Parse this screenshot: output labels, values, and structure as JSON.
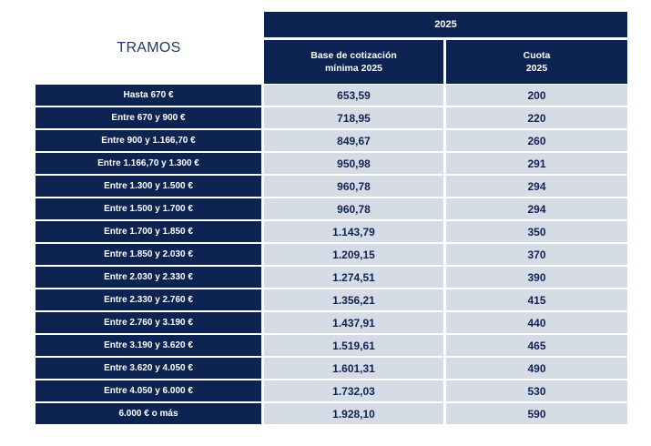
{
  "table": {
    "title": "TRAMOS",
    "year_header": "2025",
    "col_base_header": "Base de cotización\nmínima 2025",
    "col_cuota_header": "Cuota\n2025",
    "rows": [
      {
        "tramo": "Hasta 670 €",
        "base": "653,59",
        "cuota": "200"
      },
      {
        "tramo": "Entre 670 y 900 €",
        "base": "718,95",
        "cuota": "220"
      },
      {
        "tramo": "Entre 900 y 1.166,70 €",
        "base": "849,67",
        "cuota": "260"
      },
      {
        "tramo": "Entre 1.166,70 y 1.300 €",
        "base": "950,98",
        "cuota": "291"
      },
      {
        "tramo": "Entre 1.300 y 1.500 €",
        "base": "960,78",
        "cuota": "294"
      },
      {
        "tramo": "Entre 1.500 y 1.700 €",
        "base": "960,78",
        "cuota": "294"
      },
      {
        "tramo": "Entre 1.700 y 1.850 €",
        "base": "1.143,79",
        "cuota": "350"
      },
      {
        "tramo": "Entre 1.850 y 2.030 €",
        "base": "1.209,15",
        "cuota": "370"
      },
      {
        "tramo": "Entre 2.030 y 2.330 €",
        "base": "1.274,51",
        "cuota": "390"
      },
      {
        "tramo": "Entre 2.330 y 2.760 €",
        "base": "1.356,21",
        "cuota": "415"
      },
      {
        "tramo": "Entre 2.760 y 3.190 €",
        "base": "1.437,91",
        "cuota": "440"
      },
      {
        "tramo": "Entre 3.190 y 3.620 €",
        "base": "1.519,61",
        "cuota": "465"
      },
      {
        "tramo": "Entre 3.620 y 4.050 €",
        "base": "1.601,31",
        "cuota": "490"
      },
      {
        "tramo": "Entre 4.050 y 6.000 €",
        "base": "1.732,03",
        "cuota": "530"
      },
      {
        "tramo": "6.000 € o más",
        "base": "1.928,10",
        "cuota": "590"
      }
    ],
    "colors": {
      "header_bg": "#0d2453",
      "cell_bg": "#d6dce5",
      "title_text": "#1f3864"
    }
  }
}
